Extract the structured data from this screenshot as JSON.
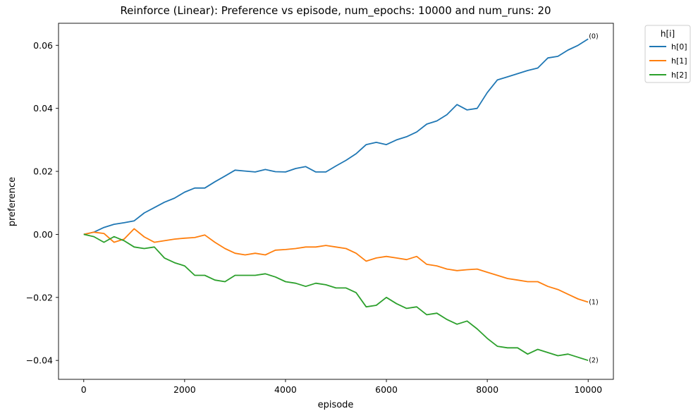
{
  "chart_data": {
    "type": "line",
    "title": "Reinforce (Linear): Preference vs episode, num_epochs: 10000 and num_runs: 20",
    "xlabel": "episode",
    "ylabel": "preference",
    "xlim": [
      -500,
      10500
    ],
    "ylim": [
      -0.046,
      0.067
    ],
    "xticks": [
      0,
      2000,
      4000,
      6000,
      8000,
      10000
    ],
    "xtick_labels": [
      "0",
      "2000",
      "4000",
      "6000",
      "8000",
      "10000"
    ],
    "yticks": [
      -0.04,
      -0.02,
      0.0,
      0.02,
      0.04,
      0.06
    ],
    "ytick_labels": [
      "−0.04",
      "−0.02",
      "0.00",
      "0.02",
      "0.04",
      "0.06"
    ],
    "grid": false,
    "legend": {
      "title": "h[i]",
      "placement": "outside-top-right"
    },
    "x": [
      0,
      200,
      400,
      600,
      800,
      1000,
      1200,
      1400,
      1600,
      1800,
      2000,
      2200,
      2400,
      2600,
      2800,
      3000,
      3200,
      3400,
      3600,
      3800,
      4000,
      4200,
      4400,
      4600,
      4800,
      5000,
      5200,
      5400,
      5600,
      5800,
      6000,
      6200,
      6400,
      6600,
      6800,
      7000,
      7200,
      7400,
      7600,
      7800,
      8000,
      8200,
      8400,
      8600,
      8800,
      9000,
      9200,
      9400,
      9600,
      9800,
      10000
    ],
    "series": [
      {
        "name": "h[0]",
        "color": "#1f77b4",
        "end_label": "(0)",
        "values": [
          0.0,
          0.0007,
          0.0022,
          0.0032,
          0.0037,
          0.0043,
          0.0068,
          0.0085,
          0.0102,
          0.0115,
          0.0134,
          0.0147,
          0.0147,
          0.0167,
          0.0185,
          0.0204,
          0.0201,
          0.0198,
          0.0206,
          0.0199,
          0.0198,
          0.0209,
          0.0215,
          0.0198,
          0.0198,
          0.0217,
          0.0235,
          0.0256,
          0.0285,
          0.0292,
          0.0285,
          0.03,
          0.031,
          0.0325,
          0.035,
          0.036,
          0.038,
          0.0412,
          0.0395,
          0.04,
          0.045,
          0.049,
          0.05,
          0.051,
          0.052,
          0.0528,
          0.056,
          0.0565,
          0.0585,
          0.06,
          0.062
        ]
      },
      {
        "name": "h[1]",
        "color": "#ff7f0e",
        "end_label": "(1)",
        "values": [
          0.0,
          0.0007,
          0.0003,
          -0.0025,
          -0.0015,
          0.0018,
          -0.0008,
          -0.0025,
          -0.002,
          -0.0015,
          -0.0012,
          -0.001,
          -0.0002,
          -0.0025,
          -0.0045,
          -0.006,
          -0.0065,
          -0.006,
          -0.0065,
          -0.005,
          -0.0048,
          -0.0045,
          -0.004,
          -0.004,
          -0.0035,
          -0.004,
          -0.0045,
          -0.006,
          -0.0085,
          -0.0075,
          -0.007,
          -0.0075,
          -0.008,
          -0.007,
          -0.0095,
          -0.01,
          -0.011,
          -0.0115,
          -0.0112,
          -0.011,
          -0.012,
          -0.013,
          -0.014,
          -0.0145,
          -0.015,
          -0.015,
          -0.0165,
          -0.0175,
          -0.019,
          -0.0205,
          -0.0215
        ]
      },
      {
        "name": "h[2]",
        "color": "#2ca02c",
        "end_label": "(2)",
        "values": [
          0.0,
          -0.0007,
          -0.0025,
          -0.0007,
          -0.002,
          -0.004,
          -0.0045,
          -0.004,
          -0.0075,
          -0.009,
          -0.01,
          -0.013,
          -0.013,
          -0.0145,
          -0.015,
          -0.013,
          -0.013,
          -0.013,
          -0.0125,
          -0.0135,
          -0.015,
          -0.0155,
          -0.0165,
          -0.0155,
          -0.016,
          -0.017,
          -0.017,
          -0.0185,
          -0.023,
          -0.0225,
          -0.02,
          -0.022,
          -0.0235,
          -0.023,
          -0.0255,
          -0.025,
          -0.027,
          -0.0285,
          -0.0275,
          -0.03,
          -0.033,
          -0.0355,
          -0.036,
          -0.036,
          -0.038,
          -0.0365,
          -0.0375,
          -0.0385,
          -0.038,
          -0.039,
          -0.04
        ]
      }
    ]
  }
}
